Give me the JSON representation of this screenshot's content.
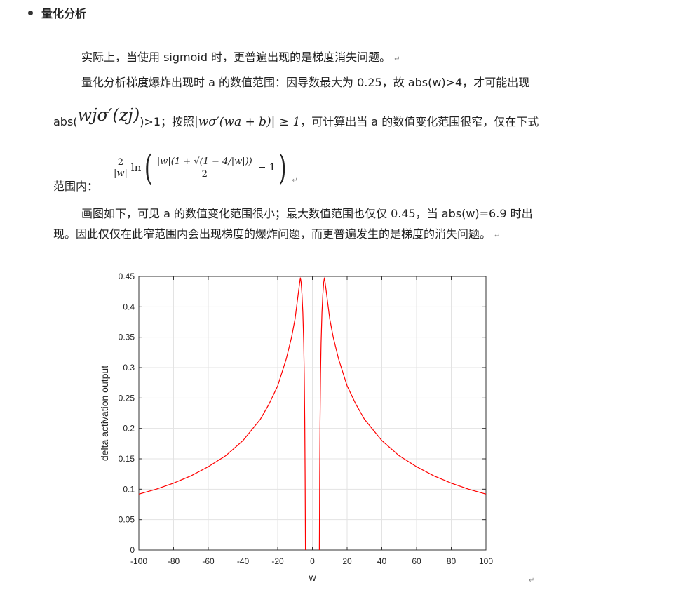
{
  "heading": {
    "bullet": "•",
    "title": "量化分析"
  },
  "paragraph1": {
    "text": "实际上，当使用 sigmoid 时，更普遍出现的是梯度消失问题。",
    "mark": "↵"
  },
  "paragraph2": {
    "line1": "量化分析梯度爆炸出现时 a 的数值范围：因导数最大为 0.25，故 abs(w)>4，才可能出现",
    "abs_prefix": "abs(",
    "formula_wjsigma": "wjσ′(zj)",
    "suffix": ")>1；按照",
    "condition": "|wσ′(wa + b)| ≥ 1",
    "tail": "，可计算出当 a 的数值变化范围很窄，仅在下式"
  },
  "range_formula": {
    "label": "范围内：",
    "lead_num": "2",
    "lead_den": "|w|",
    "ln": "ln",
    "inner_num": "|w|(1 + √(1 − 4/|w|))",
    "inner_den": "2",
    "minus_one": "− 1",
    "mark": "↵"
  },
  "paragraph3": {
    "line1": "画图如下，可见 a 的数值变化范围很小；最大数值范围也仅仅 0.45，当 abs(w)=6.9 时出",
    "line2": "现。因此仅仅在此窄范围内会出现梯度的爆炸问题，而更普遍发生的是梯度的消失问题。",
    "mark": "↵"
  },
  "trailing_mark": "↵",
  "chart_data": {
    "type": "line",
    "xlabel": "w",
    "ylabel": "delta activation output",
    "xlim": [
      -100,
      100
    ],
    "ylim": [
      0,
      0.45
    ],
    "xticks": [
      -100,
      -80,
      -60,
      -40,
      -20,
      0,
      20,
      40,
      60,
      80,
      100
    ],
    "yticks": [
      0,
      0.05,
      0.1,
      0.15,
      0.2,
      0.25,
      0.3,
      0.35,
      0.4,
      0.45
    ],
    "ytick_labels": [
      "0",
      "0.05",
      "0.1",
      "0.15",
      "0.2",
      "0.25",
      "0.3",
      "0.35",
      "0.4",
      "0.45"
    ],
    "grid": true,
    "line_color": "#ff0000",
    "series": [
      {
        "x": [
          -100,
          -90,
          -80,
          -70,
          -60,
          -50,
          -40,
          -30,
          -25,
          -20,
          -15,
          -12,
          -10,
          -8,
          -7,
          -6.9,
          -6.5,
          -6,
          -5.5,
          -5,
          -4.7,
          -4.4,
          -4.2,
          -4
        ],
        "values": [
          0.092,
          0.1,
          0.11,
          0.122,
          0.137,
          0.155,
          0.18,
          0.215,
          0.24,
          0.27,
          0.315,
          0.35,
          0.38,
          0.425,
          0.447,
          0.448,
          0.44,
          0.42,
          0.39,
          0.34,
          0.29,
          0.21,
          0.12,
          0
        ]
      },
      {
        "x": [
          4,
          4.2,
          4.4,
          4.7,
          5,
          5.5,
          6,
          6.5,
          6.9,
          7,
          8,
          10,
          12,
          15,
          20,
          25,
          30,
          40,
          50,
          60,
          70,
          80,
          90,
          100
        ],
        "values": [
          0,
          0.12,
          0.21,
          0.29,
          0.34,
          0.39,
          0.42,
          0.44,
          0.448,
          0.447,
          0.425,
          0.38,
          0.35,
          0.315,
          0.27,
          0.24,
          0.215,
          0.18,
          0.155,
          0.137,
          0.122,
          0.11,
          0.1,
          0.092
        ]
      }
    ]
  }
}
